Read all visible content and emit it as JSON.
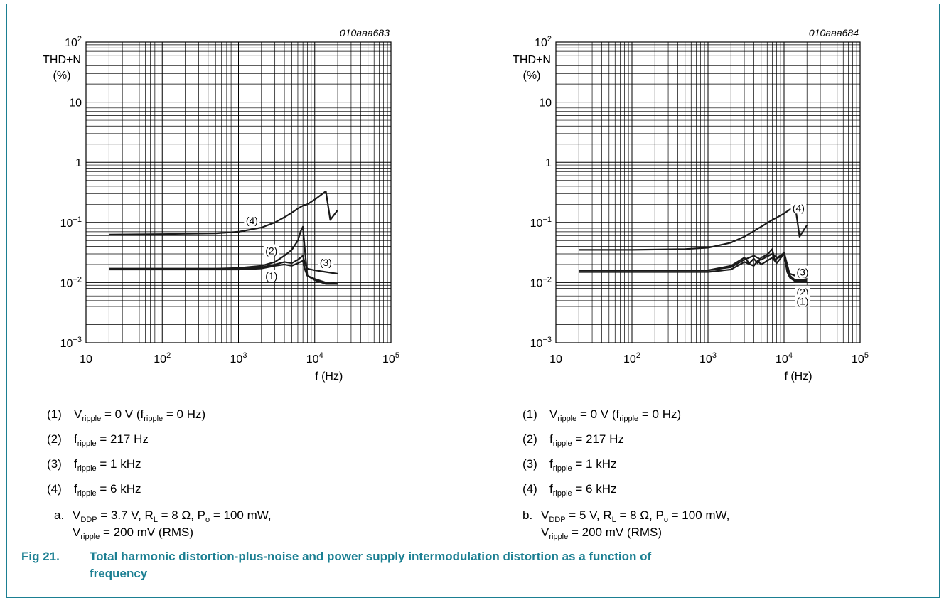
{
  "caption": {
    "figure_number": "Fig 21.",
    "text_line1": "Total harmonic distortion-plus-noise and power supply intermodulation distortion as a function of",
    "text_line2": "frequency"
  },
  "colors": {
    "caption": "#1b7f92",
    "frame": "#1b7f92",
    "line": "#000000"
  },
  "chart_data": [
    {
      "type": "line",
      "id_label": "010aaa683",
      "ylabel": "THD+N",
      "yunit": "(%)",
      "xlabel": "f (Hz)",
      "xscale": "log",
      "yscale": "log",
      "xlim": [
        10,
        100000
      ],
      "ylim": [
        0.001,
        100
      ],
      "x_ticks": [
        "10",
        "10^2",
        "10^3",
        "10^4",
        "10^5"
      ],
      "y_ticks": [
        "10^2",
        "10",
        "1",
        "10^-1",
        "10^-2",
        "10^-3"
      ],
      "grid": true,
      "series": [
        {
          "name": "(4)",
          "x": [
            20,
            100,
            500,
            1000,
            2000,
            3000,
            4000,
            5000,
            6000,
            7000,
            8000,
            10000,
            14000,
            16000,
            20000
          ],
          "y": [
            0.063,
            0.064,
            0.066,
            0.07,
            0.082,
            0.1,
            0.122,
            0.145,
            0.17,
            0.19,
            0.2,
            0.24,
            0.33,
            0.11,
            0.16
          ]
        },
        {
          "name": "(2)",
          "x": [
            20,
            100,
            500,
            1000,
            2000,
            3000,
            4000,
            5000,
            6000,
            6500,
            7000,
            7500,
            8000,
            10000,
            14000,
            20000
          ],
          "y": [
            0.017,
            0.017,
            0.017,
            0.0175,
            0.019,
            0.022,
            0.028,
            0.035,
            0.05,
            0.07,
            0.085,
            0.03,
            0.013,
            0.011,
            0.0095,
            0.0095
          ]
        },
        {
          "name": "(3)",
          "x": [
            20,
            100,
            500,
            1000,
            2000,
            3000,
            4000,
            5000,
            6000,
            7000,
            7500,
            8000,
            10000,
            14000,
            20000
          ],
          "y": [
            0.017,
            0.017,
            0.017,
            0.017,
            0.018,
            0.02,
            0.022,
            0.021,
            0.024,
            0.028,
            0.02,
            0.017,
            0.016,
            0.015,
            0.014
          ]
        },
        {
          "name": "(1)",
          "x": [
            20,
            100,
            500,
            1000,
            2000,
            3000,
            4000,
            5000,
            6000,
            7000,
            7500,
            8000,
            10000,
            14000,
            20000
          ],
          "y": [
            0.0165,
            0.0165,
            0.0165,
            0.0165,
            0.0172,
            0.019,
            0.02,
            0.019,
            0.021,
            0.023,
            0.016,
            0.013,
            0.0115,
            0.01,
            0.0095
          ]
        }
      ],
      "annotations": [
        {
          "text": "(4)",
          "x": 1500,
          "y": 0.105
        },
        {
          "text": "(2)",
          "x": 2700,
          "y": 0.033
        },
        {
          "text": "(3)",
          "x": 14000,
          "y": 0.021
        },
        {
          "text": "(1)",
          "x": 2700,
          "y": 0.0125
        }
      ],
      "legend": [
        {
          "num": "(1)",
          "sym": "V",
          "sub": "ripple",
          "rest": " = 0 V (f",
          "sub2": "ripple",
          "rest2": " = 0 Hz)"
        },
        {
          "num": "(2)",
          "sym": "f",
          "sub": "ripple",
          "rest": " = 217 Hz",
          "sub2": "",
          "rest2": ""
        },
        {
          "num": "(3)",
          "sym": "f",
          "sub": "ripple",
          "rest": " = 1 kHz",
          "sub2": "",
          "rest2": ""
        },
        {
          "num": "(4)",
          "sym": "f",
          "sub": "ripple",
          "rest": " = 6 kHz",
          "sub2": "",
          "rest2": ""
        }
      ],
      "condition": {
        "letter": "a.",
        "vddp_value": " = 3.7 V, R",
        "rl_value": " = 8 Ω, P",
        "po_value": " = 100 mW,",
        "line2_value": " = 200 mV (RMS)"
      }
    },
    {
      "type": "line",
      "id_label": "010aaa684",
      "ylabel": "THD+N",
      "yunit": "(%)",
      "xlabel": "f (Hz)",
      "xscale": "log",
      "yscale": "log",
      "xlim": [
        10,
        100000
      ],
      "ylim": [
        0.001,
        100
      ],
      "x_ticks": [
        "10",
        "10^2",
        "10^3",
        "10^4",
        "10^5"
      ],
      "y_ticks": [
        "10^2",
        "10",
        "1",
        "10^-1",
        "10^-2",
        "10^-3"
      ],
      "grid": true,
      "series": [
        {
          "name": "(4)",
          "x": [
            20,
            100,
            500,
            1000,
            2000,
            3000,
            5000,
            7000,
            10000,
            14000,
            16000,
            20000
          ],
          "y": [
            0.035,
            0.035,
            0.036,
            0.038,
            0.046,
            0.058,
            0.085,
            0.11,
            0.14,
            0.19,
            0.058,
            0.09
          ]
        },
        {
          "name": "(2)",
          "x": [
            20,
            100,
            500,
            1000,
            2000,
            3000,
            3500,
            4000,
            4500,
            5000,
            6000,
            7000,
            7500,
            8000,
            9000,
            10000,
            11000,
            12000,
            14000,
            20000
          ],
          "y": [
            0.016,
            0.016,
            0.016,
            0.016,
            0.019,
            0.026,
            0.021,
            0.025,
            0.021,
            0.026,
            0.029,
            0.036,
            0.024,
            0.025,
            0.027,
            0.032,
            0.02,
            0.013,
            0.011,
            0.011
          ]
        },
        {
          "name": "(3)",
          "x": [
            20,
            100,
            500,
            1000,
            2000,
            3000,
            4000,
            5000,
            7000,
            8000,
            10000,
            11000,
            12000,
            14000,
            20000
          ],
          "y": [
            0.016,
            0.016,
            0.016,
            0.016,
            0.018,
            0.024,
            0.028,
            0.024,
            0.03,
            0.026,
            0.03,
            0.016,
            0.014,
            0.013,
            0.012
          ]
        },
        {
          "name": "(1)",
          "x": [
            20,
            100,
            500,
            1000,
            2000,
            3000,
            4000,
            4500,
            5000,
            7000,
            8000,
            10000,
            11000,
            12000,
            14000,
            20000
          ],
          "y": [
            0.015,
            0.015,
            0.015,
            0.015,
            0.0165,
            0.022,
            0.019,
            0.023,
            0.02,
            0.026,
            0.021,
            0.03,
            0.015,
            0.012,
            0.0105,
            0.0105
          ]
        }
      ],
      "annotations": [
        {
          "text": "(4)",
          "x": 15500,
          "y": 0.17
        },
        {
          "text": "(3)",
          "x": 17500,
          "y": 0.0145
        },
        {
          "text": "(2)",
          "x": 17500,
          "y": 0.0068
        },
        {
          "text": "(1)",
          "x": 17500,
          "y": 0.0048
        }
      ],
      "legend": [
        {
          "num": "(1)",
          "sym": "V",
          "sub": "ripple",
          "rest": " = 0 V (f",
          "sub2": "ripple",
          "rest2": " = 0 Hz)"
        },
        {
          "num": "(2)",
          "sym": "f",
          "sub": "ripple",
          "rest": " = 217 Hz",
          "sub2": "",
          "rest2": ""
        },
        {
          "num": "(3)",
          "sym": "f",
          "sub": "ripple",
          "rest": " = 1 kHz",
          "sub2": "",
          "rest2": ""
        },
        {
          "num": "(4)",
          "sym": "f",
          "sub": "ripple",
          "rest": " = 6 kHz",
          "sub2": "",
          "rest2": ""
        }
      ],
      "condition": {
        "letter": "b.",
        "vddp_value": " = 5 V, R",
        "rl_value": " = 8 Ω, P",
        "po_value": " = 100 mW,",
        "line2_value": " = 200 mV (RMS)"
      }
    }
  ]
}
